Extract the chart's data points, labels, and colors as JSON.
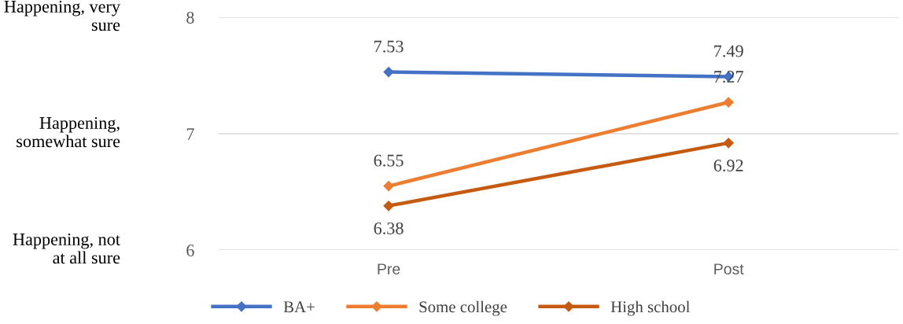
{
  "chart_data": {
    "type": "line",
    "categories": [
      "Pre",
      "Post"
    ],
    "series": [
      {
        "name": "BA+",
        "color": "#4472c4",
        "values": [
          7.53,
          7.49
        ]
      },
      {
        "name": "Some college",
        "color": "#ed7d31",
        "values": [
          6.55,
          7.27
        ]
      },
      {
        "name": "High school",
        "color": "#c55a11",
        "values": [
          6.38,
          6.92
        ]
      }
    ],
    "ylim": [
      6,
      8
    ],
    "yticks": [
      6,
      7,
      8
    ],
    "grid": "y",
    "legend": "bottom",
    "marker": "diamond",
    "line_style": "solid",
    "data_labels": true,
    "annotations": [
      "Happening, very\nsure",
      "Happening,\nsomewhat sure",
      "Happening, not\nat all sure"
    ]
  }
}
